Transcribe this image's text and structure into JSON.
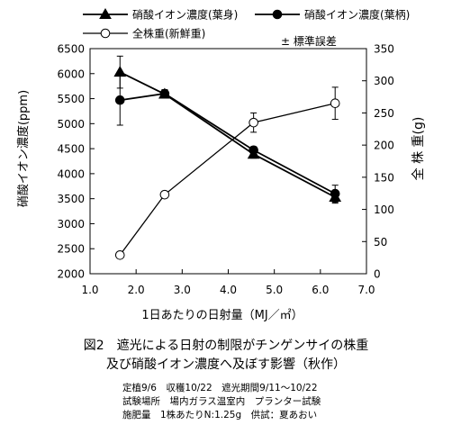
{
  "chart_data": {
    "type": "line",
    "x": [
      1.65,
      2.62,
      4.55,
      6.32
    ],
    "xlabel": "1日あたりの日射量（MJ／㎡）",
    "xlim": [
      1.0,
      7.0
    ],
    "xticks": [
      "1.0",
      "2.0",
      "3.0",
      "4.0",
      "5.0",
      "6.0",
      "7.0"
    ],
    "xtick_values": [
      1,
      2,
      3,
      4,
      5,
      6,
      7
    ],
    "ylabel_left": "硝酸イオン濃度(ppm)",
    "ylim_left": [
      2000,
      6500
    ],
    "yticks_left": [
      "2000",
      "2500",
      "3000",
      "3500",
      "4000",
      "4500",
      "5000",
      "5500",
      "6000",
      "6500"
    ],
    "ytick_values_left": [
      2000,
      2500,
      3000,
      3500,
      4000,
      4500,
      5000,
      5500,
      6000,
      6500
    ],
    "ylabel_right": "全 株 重(g)",
    "ylim_right": [
      0,
      350
    ],
    "yticks_right": [
      "0",
      "50",
      "100",
      "150",
      "200",
      "250",
      "300",
      "350"
    ],
    "ytick_values_right": [
      0,
      50,
      100,
      150,
      200,
      250,
      300,
      350
    ],
    "series": [
      {
        "name": "硝酸イオン濃度(葉身)",
        "axis": "left",
        "marker": "triangle",
        "values": [
          6030,
          5590,
          4390,
          3530
        ],
        "errors": [
          320,
          70,
          80,
          120
        ]
      },
      {
        "name": "硝酸イオン濃度(葉柄)",
        "axis": "left",
        "marker": "filled-circle",
        "values": [
          5470,
          5600,
          4470,
          3600
        ],
        "errors": [
          500,
          80,
          70,
          170
        ]
      },
      {
        "name": "全株重(新鮮重)",
        "axis": "right",
        "marker": "open-circle",
        "values": [
          29,
          123,
          235,
          265
        ],
        "errors": [
          0,
          5,
          15,
          25
        ]
      }
    ],
    "error_legend": "± 標準誤差"
  },
  "caption": {
    "line1": "図2　遮光による日射の制限がチンゲンサイの株重",
    "line2": "及び硝酸イオン濃度へ及ぼす影響（秋作）"
  },
  "notes": [
    "定植9/6　収穫10/22　遮光期間9/11〜10/22",
    "試験場所　場内ガラス温室内　プランター試験",
    "施肥量　1株あたりN:1.25g　供試：夏あおい"
  ]
}
